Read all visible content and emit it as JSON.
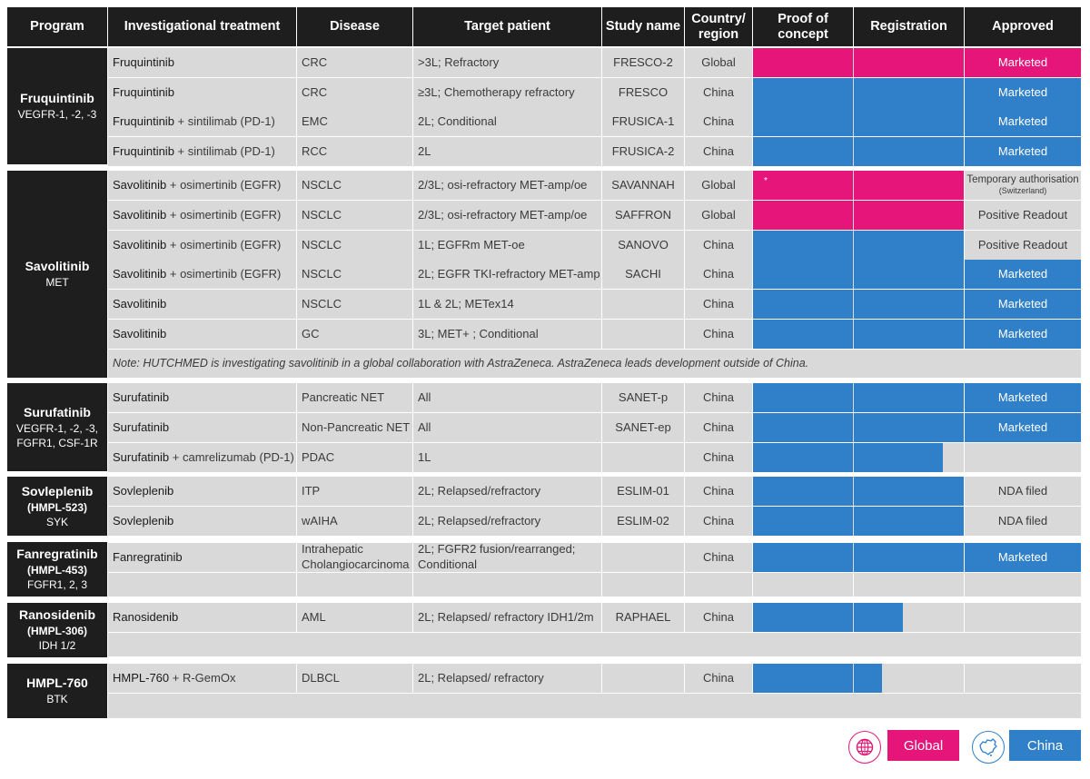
{
  "headers": {
    "program": "Program",
    "treatment": "Investigational treatment",
    "disease": "Disease",
    "target": "Target patient",
    "study": "Study name",
    "region": "Country/ region",
    "poc": "Proof of concept",
    "registration": "Registration",
    "approved": "Approved"
  },
  "programs": [
    {
      "name": "Fruquintinib",
      "code": "",
      "target": "VEGFR-1, -2, -3"
    },
    {
      "name": "Savolitinib",
      "code": "",
      "target": "MET"
    },
    {
      "name": "Surufatinib",
      "code": "",
      "target": "VEGFR-1, -2, -3, FGFR1, CSF-1R"
    },
    {
      "name": "Sovleplenib",
      "code": "(HMPL-523)",
      "target": "SYK"
    },
    {
      "name": "Fanregratinib",
      "code": "(HMPL-453)",
      "target": "FGFR1, 2, 3"
    },
    {
      "name": "Ranosidenib",
      "code": "(HMPL-306)",
      "target": "IDH 1/2"
    },
    {
      "name": "HMPL-760",
      "code": "",
      "target": "BTK"
    }
  ],
  "rows": [
    {
      "drug": "Fruquintinib",
      "combo": "",
      "disease": "CRC",
      "target": ">3L; Refractory",
      "study": "FRESCO-2",
      "region": "Global",
      "stage": 1.0,
      "scope": "global",
      "approved": "Marketed",
      "approved_sub": "",
      "approved_style": "global"
    },
    {
      "drug": "Fruquintinib",
      "combo": "",
      "disease": "CRC",
      "target": "≥3L; Chemotherapy refractory",
      "study": "FRESCO",
      "region": "China",
      "stage": 1.0,
      "scope": "china",
      "approved": "Marketed",
      "approved_sub": "",
      "approved_style": "china"
    },
    {
      "drug": "Fruquintinib",
      "combo": " + sintilimab (PD-1)",
      "disease": "EMC",
      "target": "2L; Conditional",
      "study": "FRUSICA-1",
      "region": "China",
      "stage": 1.0,
      "scope": "china",
      "approved": "Marketed",
      "approved_sub": "",
      "approved_style": "china"
    },
    {
      "drug": "Fruquintinib",
      "combo": " + sintilimab (PD-1)",
      "disease": "RCC",
      "target": "2L",
      "study": "FRUSICA-2",
      "region": "China",
      "stage": 1.0,
      "scope": "china",
      "approved": "Marketed",
      "approved_sub": "",
      "approved_style": "china"
    },
    {
      "drug": "Savolitinib",
      "combo": " + osimertinib (EGFR)",
      "disease": "NSCLC",
      "target": "2/3L; osi-refractory MET-amp/oe",
      "study": "SAVANNAH",
      "region": "Global",
      "stage": 1.0,
      "scope": "global",
      "approved": "Temporary authorisation",
      "approved_sub": "(Switzerland)",
      "approved_style": "none",
      "mark": "*"
    },
    {
      "drug": "Savolitinib",
      "combo": " + osimertinib (EGFR)",
      "disease": "NSCLC",
      "target": "2/3L; osi-refractory MET-amp/oe",
      "study": "SAFFRON",
      "region": "Global",
      "stage": 1.0,
      "scope": "global",
      "approved": "Positive Readout",
      "approved_sub": "",
      "approved_style": "none"
    },
    {
      "drug": "Savolitinib",
      "combo": " + osimertinib (EGFR)",
      "disease": "NSCLC",
      "target": "1L; EGFRm MET-oe",
      "study": "SANOVO",
      "region": "China",
      "stage": 1.0,
      "scope": "china",
      "approved": "Positive Readout",
      "approved_sub": "",
      "approved_style": "none"
    },
    {
      "drug": "Savolitinib",
      "combo": " + osimertinib (EGFR)",
      "disease": "NSCLC",
      "target": "2L; EGFR TKI-refractory MET-amp",
      "study": "SACHI",
      "region": "China",
      "stage": 1.0,
      "scope": "china",
      "approved": "Marketed",
      "approved_sub": "",
      "approved_style": "china"
    },
    {
      "drug": "Savolitinib",
      "combo": "",
      "disease": "NSCLC",
      "target": "1L & 2L; METex14",
      "study": "",
      "region": "China",
      "stage": 1.0,
      "scope": "china",
      "approved": "Marketed",
      "approved_sub": "",
      "approved_style": "china"
    },
    {
      "drug": "Savolitinib",
      "combo": "",
      "disease": "GC",
      "target": "3L; MET+ ; Conditional",
      "study": "",
      "region": "China",
      "stage": 1.0,
      "scope": "china",
      "approved": "Marketed",
      "approved_sub": "",
      "approved_style": "china"
    },
    {
      "drug": "Surufatinib",
      "combo": "",
      "disease": "Pancreatic NET",
      "target": "All",
      "study": "SANET-p",
      "region": "China",
      "stage": 1.0,
      "scope": "china",
      "approved": "Marketed",
      "approved_sub": "",
      "approved_style": "china"
    },
    {
      "drug": "Surufatinib",
      "combo": "",
      "disease": "Non-Pancreatic NET",
      "target": "All",
      "study": "SANET-ep",
      "region": "China",
      "stage": 1.0,
      "scope": "china",
      "approved": "Marketed",
      "approved_sub": "",
      "approved_style": "china"
    },
    {
      "drug": "Surufatinib",
      "combo": " + camrelizumab (PD-1)",
      "disease": "PDAC",
      "target": "1L",
      "study": "",
      "region": "China",
      "stage": 0.9,
      "scope": "china",
      "approved": "",
      "approved_sub": "",
      "approved_style": "none"
    },
    {
      "drug": "Sovleplenib",
      "combo": "",
      "disease": "ITP",
      "target": "2L; Relapsed/refractory",
      "study": "ESLIM-01",
      "region": "China",
      "stage": 1.0,
      "scope": "china",
      "approved": "NDA filed",
      "approved_sub": "",
      "approved_style": "none"
    },
    {
      "drug": "Sovleplenib",
      "combo": "",
      "disease": "wAIHA",
      "target": "2L; Relapsed/refractory",
      "study": "ESLIM-02",
      "region": "China",
      "stage": 1.0,
      "scope": "china",
      "approved": "NDA filed",
      "approved_sub": "",
      "approved_style": "none"
    },
    {
      "drug": "Fanregratinib",
      "combo": "",
      "disease": "Intrahepatic Cholangiocarcinoma",
      "target": "2L; FGFR2 fusion/rearranged; Conditional",
      "study": "",
      "region": "China",
      "stage": 1.0,
      "scope": "china",
      "approved": "Marketed",
      "approved_sub": "",
      "approved_style": "china"
    },
    {
      "drug": "Ranosidenib",
      "combo": "",
      "disease": "AML",
      "target": "2L; Relapsed/ refractory IDH1/2m",
      "study": "RAPHAEL",
      "region": "China",
      "stage": 0.71,
      "scope": "china",
      "approved": "",
      "approved_sub": "",
      "approved_style": "none"
    },
    {
      "drug": "HMPL-760",
      "combo": " + R-GemOx",
      "disease": "DLBCL",
      "target": "2L; Relapsed/ refractory",
      "study": "",
      "region": "China",
      "stage": 0.61,
      "scope": "china",
      "approved": "",
      "approved_sub": "",
      "approved_style": "none"
    }
  ],
  "note": "Note: HUTCHMED is investigating savolitinib in a global collaboration with AstraZeneca. AstraZeneca leads development outside of China.",
  "legend": [
    {
      "label": "Global",
      "icon": "globe-icon",
      "color": "#e5157a"
    },
    {
      "label": "China",
      "icon": "china-map-icon",
      "color": "#2f7fc9"
    }
  ],
  "colors": {
    "global": "#e5157a",
    "china": "#2f7fc9",
    "header": "#1e1e1e",
    "cell": "#d9d9d9"
  }
}
